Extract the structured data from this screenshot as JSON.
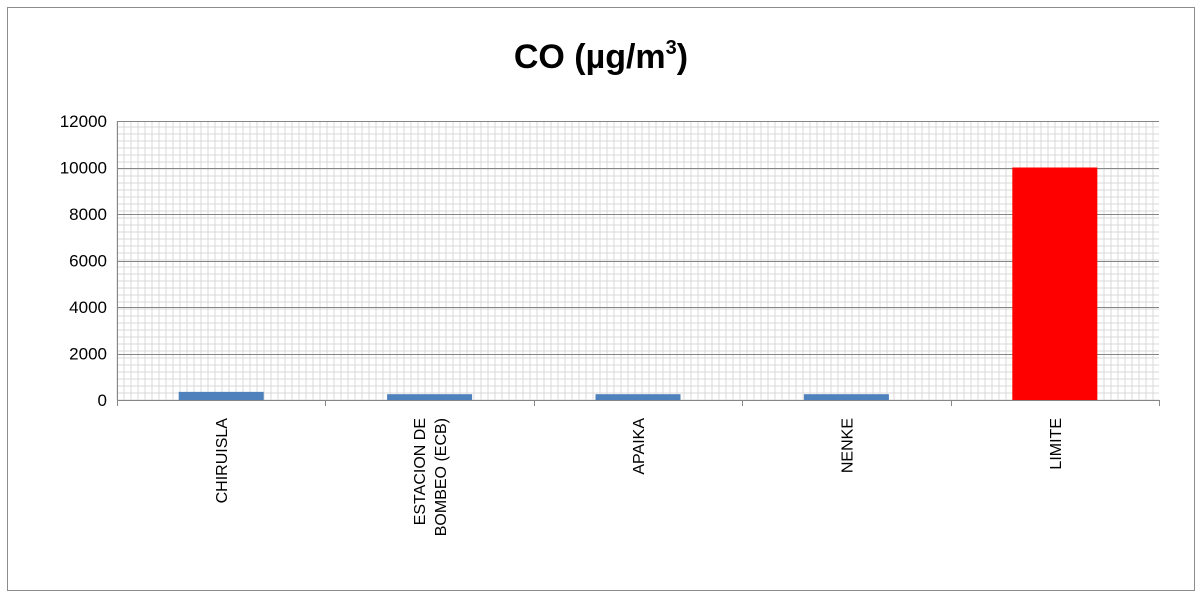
{
  "chart_data": {
    "type": "bar",
    "title_main": "CO (µg/m",
    "title_sup": "3",
    "title_close": ")",
    "categories": [
      [
        "CHIRUISLA"
      ],
      [
        "ESTACION DE",
        "BOMBEO (ECB)"
      ],
      [
        "APAIKA"
      ],
      [
        "NENKE"
      ],
      [
        "LIMITE"
      ]
    ],
    "values": [
      350,
      250,
      250,
      250,
      10000
    ],
    "bar_colors": [
      "#4f81bd",
      "#4f81bd",
      "#4f81bd",
      "#4f81bd",
      "#ff0000"
    ],
    "ylim": [
      0,
      12000
    ],
    "yticks": [
      0,
      2000,
      4000,
      6000,
      8000,
      10000,
      12000
    ],
    "grid": true
  }
}
